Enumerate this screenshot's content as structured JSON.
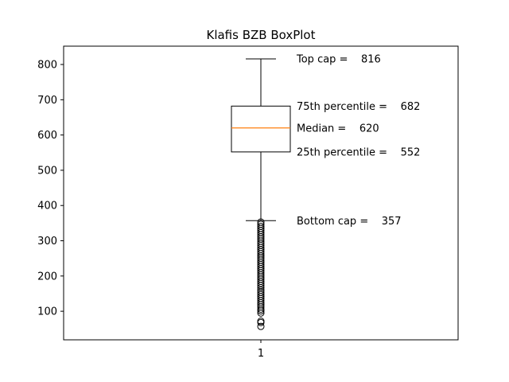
{
  "chart_data": {
    "type": "boxplot",
    "title": "Klafis BZB BoxPlot",
    "xlabel": "",
    "ylabel": "",
    "categories": [
      "1"
    ],
    "ylim": [
      19,
      852
    ],
    "yticks": [
      100,
      200,
      300,
      400,
      500,
      600,
      700,
      800
    ],
    "box": {
      "whisker_low": 357,
      "q1": 552,
      "median": 620,
      "q3": 682,
      "whisker_high": 816
    },
    "outliers": [
      57,
      68,
      72,
      95,
      101,
      106,
      112,
      118,
      124,
      130,
      136,
      142,
      148,
      154,
      160,
      167,
      173,
      179,
      185,
      191,
      197,
      203,
      209,
      215,
      221,
      227,
      233,
      239,
      245,
      251,
      257,
      263,
      269,
      275,
      281,
      287,
      293,
      299,
      305,
      311,
      317,
      323,
      329,
      335,
      341,
      347,
      353
    ],
    "annotations": [
      {
        "label": "Top cap = ",
        "value": "816",
        "y": 816
      },
      {
        "label": "75th percentile = ",
        "value": "682",
        "y": 682
      },
      {
        "label": "Median = ",
        "value": "620",
        "y": 620
      },
      {
        "label": "25th percentile = ",
        "value": "552",
        "y": 552
      },
      {
        "label": "Bottom cap = ",
        "value": "357",
        "y": 357
      }
    ],
    "colors": {
      "box": "#000000",
      "median": "#ff7f0e",
      "outlier": "#000000"
    },
    "grid": false
  }
}
